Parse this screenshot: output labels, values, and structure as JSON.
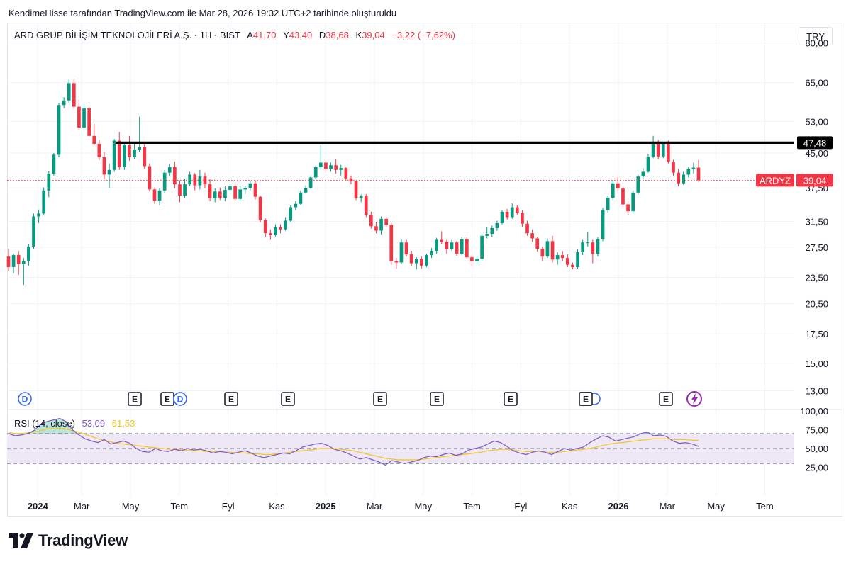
{
  "header": {
    "caption": "KendimeHisse tarafından TradingView.com ile Mar 28, 2026 19:32 UTC+2 tarihinde oluşturuldu"
  },
  "legend": {
    "symbol_line": "ARD GRUP BİLİŞİM TEKNOLOJİLERİ A.Ş. · 1H · BIST",
    "open_label": "A",
    "open_value": "41,70",
    "high_label": "Y",
    "high_value": "43,40",
    "low_label": "D",
    "low_value": "38,68",
    "close_label": "K",
    "close_value": "39,04",
    "change": "−3,22 (−7,62%)"
  },
  "currency": "TRY",
  "price_axis": {
    "labels": [
      "80,00",
      "65,00",
      "53,00",
      "45,00",
      "37,50",
      "31,50",
      "27,50",
      "23,50",
      "20,50",
      "17,50",
      "15,00",
      "13,00"
    ]
  },
  "resistance": {
    "value": "47,48"
  },
  "last_price": {
    "ticker": "ARDYZ",
    "value": "39,04"
  },
  "rsi": {
    "name": "RSI (14, close)",
    "value": "53,09",
    "ma_value": "61,53",
    "axis_labels": [
      "100,00",
      "75,00",
      "50,00",
      "25,00"
    ]
  },
  "time_axis": {
    "labels": [
      "2024",
      "Mar",
      "May",
      "Tem",
      "Eyl",
      "Kas",
      "2025",
      "Mar",
      "May",
      "Tem",
      "Eyl",
      "Kas",
      "2026",
      "Mar",
      "May",
      "Tem"
    ]
  },
  "event_markers": [
    "D",
    "E",
    "E",
    "D",
    "E",
    "E",
    "E",
    "E",
    "E",
    "E"
  ],
  "brand": "TradingView",
  "colors": {
    "up": "#089981",
    "down": "#f23645",
    "rsi_line": "#7e57c2",
    "rsi_ma": "#f5c518",
    "rsi_band": "#ede7f6"
  },
  "chart_data": {
    "type": "candlestick",
    "title": "ARD GRUP BİLİŞİM TEKNOLOJİLERİ A.Ş. · 1H · BIST",
    "y_scale": "log",
    "ylim": [
      12.6,
      85
    ],
    "x_range": [
      "2024-01",
      "2026-08"
    ],
    "resistance_line": 47.48,
    "last_close": 39.04,
    "candles": [
      [
        26.2,
        27.3,
        24.3,
        24.8
      ],
      [
        24.8,
        26.6,
        24.0,
        26.4
      ],
      [
        26.4,
        27.0,
        23.8,
        25.2
      ],
      [
        25.2,
        26.0,
        22.6,
        25.6
      ],
      [
        25.6,
        28.0,
        25.0,
        27.6
      ],
      [
        27.6,
        32.8,
        27.3,
        32.3
      ],
      [
        32.3,
        33.5,
        31.2,
        32.8
      ],
      [
        32.8,
        37.6,
        32.5,
        37.0
      ],
      [
        37.0,
        41.0,
        35.7,
        40.4
      ],
      [
        40.4,
        45.0,
        40.0,
        44.6
      ],
      [
        44.6,
        58.4,
        44.0,
        57.8
      ],
      [
        57.8,
        60.2,
        56.8,
        59.2
      ],
      [
        59.2,
        66.0,
        58.4,
        64.8
      ],
      [
        64.8,
        66.2,
        56.8,
        57.3
      ],
      [
        57.3,
        59.5,
        50.8,
        51.4
      ],
      [
        51.4,
        58.2,
        50.6,
        56.8
      ],
      [
        56.8,
        57.2,
        48.8,
        49.2
      ],
      [
        49.2,
        52.4,
        46.8,
        47.2
      ],
      [
        47.2,
        48.2,
        43.4,
        44.0
      ],
      [
        44.0,
        45.2,
        39.2,
        40.2
      ],
      [
        40.2,
        42.6,
        37.5,
        41.2
      ],
      [
        41.2,
        48.4,
        40.8,
        48.0
      ],
      [
        48.0,
        50.2,
        41.2,
        41.8
      ],
      [
        41.8,
        47.6,
        41.2,
        47.0
      ],
      [
        47.0,
        49.2,
        43.2,
        44.0
      ],
      [
        44.0,
        47.5,
        43.7,
        45.8
      ],
      [
        45.8,
        54.4,
        45.2,
        46.4
      ],
      [
        46.4,
        47.4,
        41.4,
        42.0
      ],
      [
        42.0,
        42.6,
        36.8,
        37.2
      ],
      [
        37.2,
        37.6,
        34.5,
        35.1
      ],
      [
        35.1,
        37.4,
        34.2,
        37.0
      ],
      [
        37.0,
        41.2,
        36.6,
        40.6
      ],
      [
        40.6,
        42.5,
        39.8,
        41.8
      ],
      [
        41.8,
        43.0,
        37.4,
        38.2
      ],
      [
        38.2,
        39.0,
        34.8,
        36.0
      ],
      [
        36.0,
        39.4,
        35.5,
        38.2
      ],
      [
        38.2,
        40.8,
        37.8,
        40.2
      ],
      [
        40.2,
        40.5,
        37.0,
        38.0
      ],
      [
        38.0,
        41.2,
        37.2,
        39.8
      ],
      [
        39.8,
        40.6,
        37.4,
        38.2
      ],
      [
        38.2,
        39.2,
        35.0,
        35.5
      ],
      [
        35.5,
        37.4,
        34.8,
        36.8
      ],
      [
        36.8,
        37.6,
        35.2,
        35.6
      ],
      [
        35.6,
        37.8,
        35.0,
        37.1
      ],
      [
        37.1,
        38.6,
        36.5,
        37.8
      ],
      [
        37.8,
        38.2,
        35.2,
        35.4
      ],
      [
        35.4,
        37.8,
        35.0,
        37.2
      ],
      [
        37.2,
        37.8,
        36.3,
        37.5
      ],
      [
        37.5,
        38.8,
        37.0,
        38.4
      ],
      [
        38.4,
        39.0,
        35.3,
        35.8
      ],
      [
        35.8,
        36.0,
        31.3,
        31.7
      ],
      [
        31.7,
        32.0,
        29.0,
        29.6
      ],
      [
        29.6,
        30.2,
        28.6,
        29.3
      ],
      [
        29.3,
        31.0,
        29.1,
        30.5
      ],
      [
        30.5,
        31.0,
        29.6,
        30.2
      ],
      [
        30.2,
        32.2,
        30.0,
        31.6
      ],
      [
        31.6,
        34.2,
        31.4,
        33.9
      ],
      [
        33.9,
        35.0,
        33.4,
        34.5
      ],
      [
        34.5,
        37.0,
        34.3,
        36.6
      ],
      [
        36.6,
        38.0,
        36.4,
        37.5
      ],
      [
        37.5,
        40.0,
        37.3,
        39.6
      ],
      [
        39.6,
        42.2,
        39.2,
        41.8
      ],
      [
        41.8,
        46.8,
        41.2,
        42.8
      ],
      [
        42.8,
        43.2,
        40.6,
        41.4
      ],
      [
        41.4,
        42.8,
        40.8,
        42.2
      ],
      [
        42.2,
        43.6,
        40.4,
        41.2
      ],
      [
        41.2,
        42.3,
        40.0,
        41.6
      ],
      [
        41.6,
        41.8,
        39.0,
        39.4
      ],
      [
        39.4,
        40.0,
        38.2,
        38.8
      ],
      [
        38.8,
        39.0,
        35.2,
        35.6
      ],
      [
        35.6,
        36.2,
        34.8,
        36.0
      ],
      [
        36.0,
        36.3,
        32.2,
        32.6
      ],
      [
        32.6,
        33.1,
        30.3,
        30.7
      ],
      [
        30.7,
        31.4,
        29.6,
        30.0
      ],
      [
        30.0,
        32.3,
        29.4,
        31.9
      ],
      [
        31.9,
        32.2,
        30.6,
        30.9
      ],
      [
        30.9,
        31.2,
        25.1,
        25.6
      ],
      [
        25.6,
        26.0,
        24.6,
        25.4
      ],
      [
        25.4,
        28.7,
        25.2,
        28.2
      ],
      [
        28.2,
        28.6,
        26.2,
        26.5
      ],
      [
        26.5,
        27.0,
        24.9,
        25.3
      ],
      [
        25.3,
        26.1,
        24.5,
        25.9
      ],
      [
        25.9,
        26.2,
        24.6,
        25.0
      ],
      [
        25.0,
        26.6,
        24.8,
        26.4
      ],
      [
        26.4,
        27.4,
        26.0,
        27.0
      ],
      [
        27.0,
        28.9,
        26.6,
        28.6
      ],
      [
        28.6,
        29.9,
        28.0,
        28.3
      ],
      [
        28.3,
        28.6,
        26.6,
        27.2
      ],
      [
        27.2,
        28.6,
        27.0,
        28.2
      ],
      [
        28.2,
        28.4,
        26.3,
        26.6
      ],
      [
        26.6,
        29.0,
        26.4,
        28.7
      ],
      [
        28.7,
        29.0,
        25.8,
        26.1
      ],
      [
        26.1,
        26.4,
        25.0,
        25.6
      ],
      [
        25.6,
        26.2,
        25.1,
        25.9
      ],
      [
        25.9,
        29.6,
        25.6,
        29.2
      ],
      [
        29.2,
        30.6,
        28.8,
        29.5
      ],
      [
        29.5,
        30.8,
        29.0,
        30.4
      ],
      [
        30.4,
        31.6,
        30.0,
        31.2
      ],
      [
        31.2,
        33.4,
        31.0,
        33.1
      ],
      [
        33.1,
        33.6,
        31.8,
        32.2
      ],
      [
        32.2,
        34.6,
        31.9,
        33.9
      ],
      [
        33.9,
        34.2,
        32.6,
        32.9
      ],
      [
        32.9,
        33.4,
        30.6,
        31.1
      ],
      [
        31.1,
        31.6,
        29.2,
        29.6
      ],
      [
        29.6,
        30.2,
        28.3,
        28.8
      ],
      [
        28.8,
        29.0,
        26.9,
        27.3
      ],
      [
        27.3,
        27.6,
        25.6,
        26.2
      ],
      [
        26.2,
        28.8,
        26.0,
        28.4
      ],
      [
        28.4,
        29.2,
        25.4,
        25.8
      ],
      [
        25.8,
        26.8,
        25.1,
        26.4
      ],
      [
        26.4,
        27.0,
        25.6,
        26.0
      ],
      [
        26.0,
        26.5,
        24.8,
        25.1
      ],
      [
        25.1,
        25.4,
        24.5,
        24.8
      ],
      [
        24.8,
        27.2,
        24.6,
        26.8
      ],
      [
        26.8,
        28.6,
        26.4,
        28.2
      ],
      [
        28.2,
        29.8,
        27.6,
        28.2
      ],
      [
        28.2,
        28.6,
        25.3,
        26.6
      ],
      [
        26.6,
        29.0,
        26.2,
        28.7
      ],
      [
        28.7,
        33.8,
        28.4,
        33.4
      ],
      [
        33.4,
        36.0,
        33.0,
        35.6
      ],
      [
        35.6,
        39.0,
        35.2,
        38.4
      ],
      [
        38.4,
        39.8,
        37.0,
        37.4
      ],
      [
        37.4,
        38.0,
        33.9,
        34.4
      ],
      [
        34.4,
        35.0,
        32.6,
        33.2
      ],
      [
        33.2,
        37.0,
        32.8,
        36.6
      ],
      [
        36.6,
        40.2,
        36.2,
        39.8
      ],
      [
        39.8,
        41.6,
        39.2,
        40.8
      ],
      [
        40.8,
        44.8,
        40.6,
        44.1
      ],
      [
        44.1,
        49.2,
        43.8,
        47.2
      ],
      [
        47.2,
        48.2,
        43.6,
        44.2
      ],
      [
        44.2,
        47.6,
        43.8,
        47.2
      ],
      [
        47.2,
        48.0,
        42.6,
        43.0
      ],
      [
        43.0,
        43.4,
        40.0,
        40.6
      ],
      [
        40.6,
        41.4,
        37.8,
        38.4
      ],
      [
        38.4,
        40.8,
        38.1,
        40.2
      ],
      [
        40.2,
        41.8,
        39.6,
        41.4
      ],
      [
        41.4,
        42.8,
        40.4,
        41.7
      ],
      [
        41.7,
        43.4,
        38.7,
        39.04
      ]
    ],
    "rsi_series": {
      "name": "RSI (14, close)",
      "last": 53.09,
      "values": [
        70,
        67,
        68,
        70,
        74,
        82,
        86,
        88,
        90,
        86,
        75,
        68,
        63,
        60,
        58,
        62,
        56,
        58,
        60,
        57,
        50,
        46,
        45,
        50,
        47,
        46,
        49,
        47,
        50,
        48,
        49,
        47,
        44,
        46,
        45,
        43,
        45,
        47,
        44,
        40,
        38,
        40,
        42,
        44,
        43,
        47,
        52,
        54,
        56,
        57,
        54,
        49,
        47,
        44,
        40,
        36,
        38,
        35,
        32,
        28,
        34,
        32,
        30,
        32,
        34,
        38,
        40,
        39,
        42,
        44,
        41,
        43,
        48,
        50,
        52,
        56,
        60,
        58,
        53,
        47,
        44,
        42,
        45,
        47,
        45,
        42,
        46,
        50,
        48,
        50,
        52,
        58,
        63,
        67,
        65,
        60,
        62,
        64,
        66,
        70,
        72,
        67,
        68,
        66,
        60,
        57,
        58,
        56,
        53
      ]
    },
    "rsi_ma": {
      "last": 61.53,
      "values": [
        72,
        70,
        70,
        71,
        72,
        74,
        76,
        77,
        77,
        76,
        74,
        72,
        69,
        66,
        63,
        61,
        59,
        57,
        56,
        55,
        54,
        53,
        52,
        51,
        50,
        49,
        49,
        48,
        48,
        47,
        47,
        46,
        46,
        46,
        45,
        45,
        44,
        44,
        43,
        43,
        42,
        42,
        43,
        44,
        45,
        46,
        47,
        48,
        49,
        50,
        50,
        50,
        49,
        48,
        47,
        45,
        43,
        41,
        39,
        37,
        36,
        35,
        35,
        35,
        35,
        36,
        37,
        38,
        39,
        40,
        41,
        42,
        43,
        44,
        45,
        47,
        48,
        49,
        49,
        48,
        47,
        46,
        46,
        46,
        45,
        45,
        45,
        46,
        47,
        48,
        49,
        50,
        52,
        54,
        56,
        57,
        58,
        59,
        60,
        61,
        62,
        63,
        63,
        63,
        62,
        62,
        62,
        61,
        61
      ]
    }
  }
}
